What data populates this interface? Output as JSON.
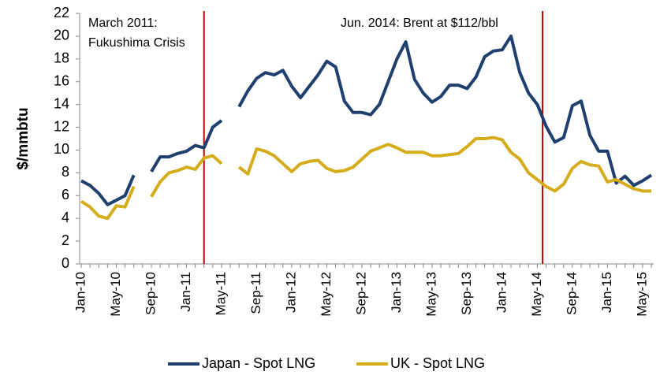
{
  "chart_data": {
    "type": "line",
    "ylabel": "$/mmbtu",
    "categories": [
      "Jan-10",
      null,
      null,
      null,
      "May-10",
      null,
      null,
      null,
      "Sep-10",
      null,
      null,
      null,
      "Jan-11",
      null,
      null,
      null,
      "May-11",
      null,
      null,
      null,
      "Sep-11",
      null,
      null,
      null,
      "Jan-12",
      null,
      null,
      null,
      "May-12",
      null,
      null,
      null,
      "Sep-12",
      null,
      null,
      null,
      "Jan-13",
      null,
      null,
      null,
      "May-13",
      null,
      null,
      null,
      "Sep-13",
      null,
      null,
      null,
      "Jan-14",
      null,
      null,
      null,
      "May-14",
      null,
      null,
      null,
      "Sep-14",
      null,
      null,
      null,
      "Jan-15",
      null,
      null,
      null,
      "May-15",
      null
    ],
    "series": [
      {
        "name": "Japan - Spot LNG",
        "color": "#1f3f6e",
        "values": [
          7.3,
          6.9,
          6.2,
          5.2,
          5.6,
          6.0,
          7.8,
          null,
          8.1,
          9.4,
          9.4,
          9.7,
          9.9,
          10.4,
          10.2,
          12.0,
          12.6,
          null,
          13.8,
          15.2,
          16.3,
          16.8,
          16.6,
          17.0,
          15.6,
          14.6,
          15.6,
          16.6,
          17.8,
          17.3,
          14.3,
          13.3,
          13.3,
          13.1,
          14.0,
          16.0,
          18.0,
          19.5,
          16.2,
          15.0,
          14.2,
          14.7,
          15.7,
          15.7,
          15.4,
          16.4,
          18.2,
          18.7,
          18.8,
          20.0,
          16.8,
          15.0,
          14.0,
          12.1,
          10.7,
          11.1,
          13.9,
          14.3,
          11.3,
          9.9,
          9.9,
          7.1,
          7.7,
          6.9,
          7.3,
          7.8
        ]
      },
      {
        "name": "UK - Spot LNG",
        "color": "#d4ac1c",
        "values": [
          5.5,
          5.0,
          4.2,
          4.0,
          5.1,
          5.0,
          6.8,
          null,
          5.9,
          7.2,
          8.0,
          8.2,
          8.5,
          8.3,
          9.3,
          9.5,
          8.8,
          null,
          8.5,
          7.9,
          10.1,
          9.9,
          9.5,
          8.8,
          8.1,
          8.8,
          9.0,
          9.1,
          8.4,
          8.1,
          8.2,
          8.5,
          9.2,
          9.9,
          10.2,
          10.5,
          10.2,
          9.8,
          9.8,
          9.8,
          9.5,
          9.5,
          9.6,
          9.7,
          10.3,
          11.0,
          11.0,
          11.1,
          10.9,
          9.8,
          9.2,
          8.0,
          7.4,
          6.8,
          6.4,
          7.0,
          8.4,
          9.0,
          8.7,
          8.6,
          7.2,
          7.4,
          7.0,
          6.6,
          6.4,
          6.4
        ]
      }
    ],
    "ylim": [
      0,
      22
    ],
    "yticks": [
      0,
      2,
      4,
      6,
      8,
      10,
      12,
      14,
      16,
      18,
      20,
      22
    ],
    "grid": false,
    "legend": "bottom",
    "annotations": [
      {
        "text": [
          "March 2011:",
          "Fukushima Crisis"
        ],
        "x": 14,
        "color": "#c00000"
      },
      {
        "text": [
          "Jun. 2014: Brent at $112/bbl"
        ],
        "x": 52.6,
        "color": "#c00000"
      }
    ]
  }
}
